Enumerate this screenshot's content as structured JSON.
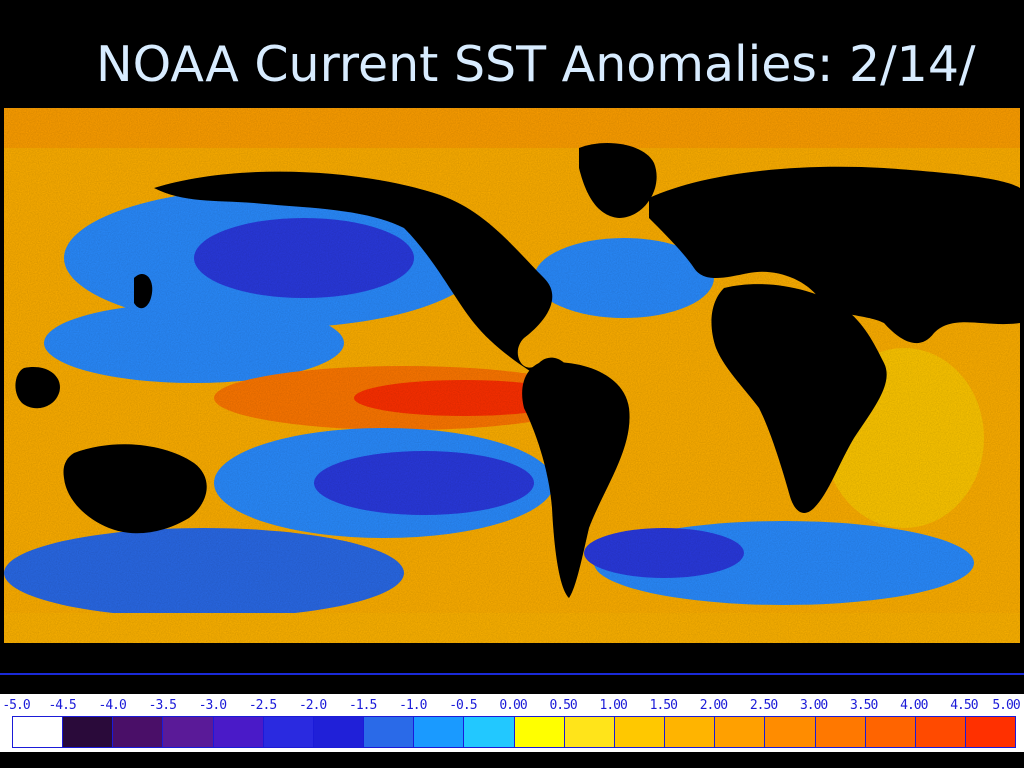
{
  "title": "NOAA Current SST Anomalies: 2/14/",
  "legend": {
    "ticks": [
      "-5.0",
      "-4.5",
      "-4.0",
      "-3.5",
      "-3.0",
      "-2.5",
      "-2.0",
      "-1.5",
      "-1.0",
      "-0.5",
      "0.00",
      "0.50",
      "1.00",
      "1.50",
      "2.00",
      "2.50",
      "3.00",
      "3.50",
      "4.00",
      "4.50",
      "5.00"
    ],
    "colors": [
      "#ffffff",
      "#2a0a3a",
      "#4a0f68",
      "#5a1a98",
      "#4a1ac8",
      "#2a2ae0",
      "#2020d8",
      "#2a6ae8",
      "#1a9aff",
      "#22c8ff",
      "#ffff00",
      "#ffe41a",
      "#ffc800",
      "#ffb400",
      "#ffa000",
      "#ff8c00",
      "#ff7800",
      "#ff6400",
      "#ff4a00",
      "#ff3000"
    ]
  },
  "colors": {
    "background": "#000000",
    "title": "#d8ecff",
    "ocean_warm": "#ffb000",
    "ocean_hot": "#ff4a10",
    "ocean_cool": "#2a8cff",
    "ocean_cold": "#2a3ae0",
    "land": "#000000"
  }
}
